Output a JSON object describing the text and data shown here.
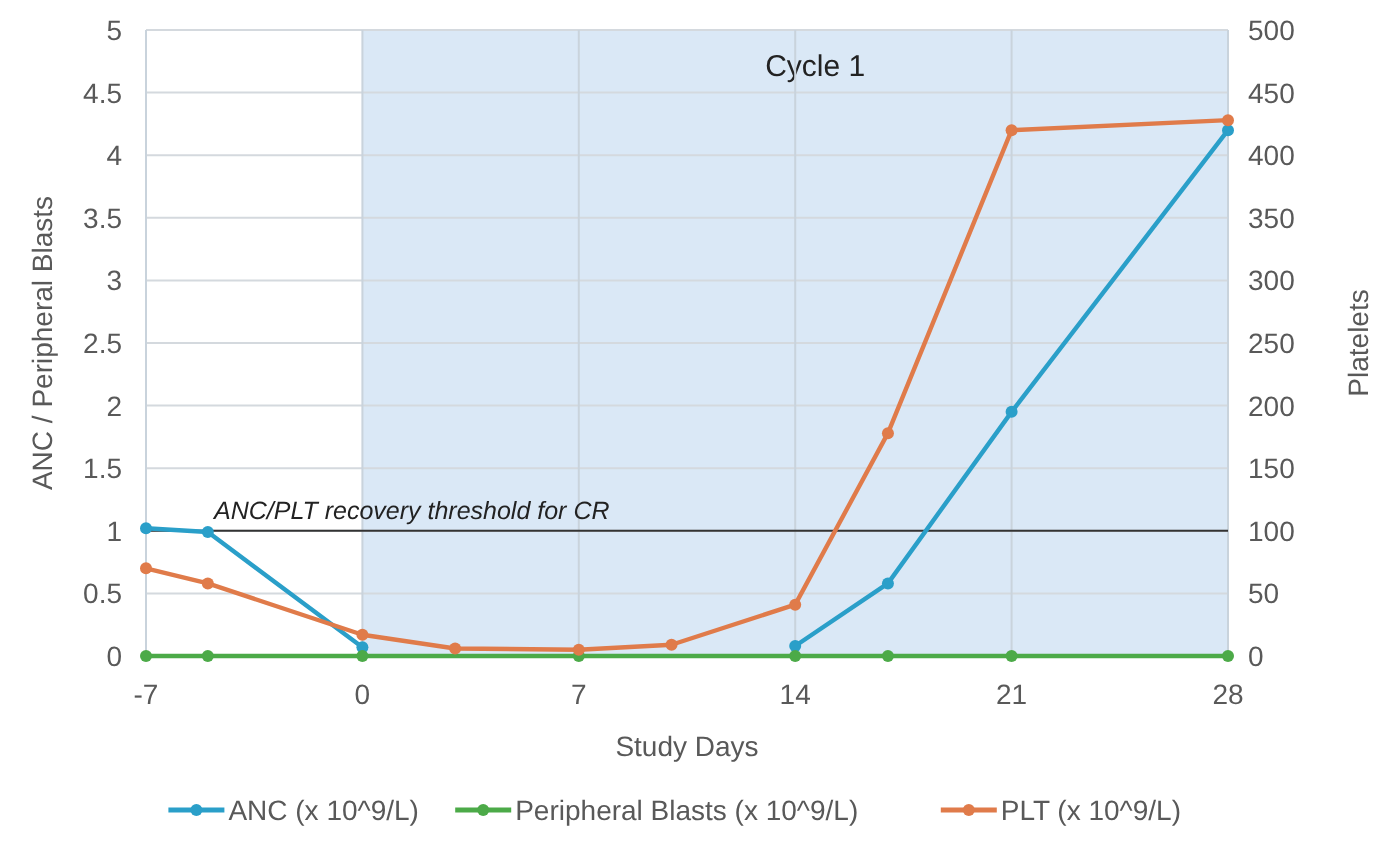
{
  "chart_data": {
    "type": "line",
    "xlabel": "Study Days",
    "ylabel": "ANC / Peripheral Blasts",
    "y2label": "Platelets",
    "xlim": [
      -7,
      28
    ],
    "xticks": [
      -7,
      0,
      7,
      14,
      21,
      28
    ],
    "ylim": [
      0,
      5
    ],
    "yticks": [
      0,
      0.5,
      1,
      1.5,
      2,
      2.5,
      3,
      3.5,
      4,
      4.5,
      5
    ],
    "y2lim": [
      0,
      500
    ],
    "y2ticks": [
      0,
      50,
      100,
      150,
      200,
      250,
      300,
      350,
      400,
      450,
      500
    ],
    "grid": true,
    "legend": "bottom",
    "marker": "circle",
    "line_style": "solid",
    "series": [
      {
        "name": "ANC (x 10^9/L)",
        "color": "#2a9fc9",
        "x": [
          -7,
          -5,
          0,
          7,
          14,
          17,
          21,
          28
        ],
        "values": [
          1.02,
          0.99,
          0.07,
          null,
          0.08,
          0.58,
          1.95,
          4.2
        ]
      },
      {
        "name": "Peripheral Blasts (x 10^9/L)",
        "color": "#4caa48",
        "x": [
          -7,
          -5,
          0,
          7,
          14,
          17,
          21,
          28
        ],
        "values": [
          0,
          0,
          0,
          0,
          0,
          0,
          0,
          0
        ]
      },
      {
        "name": "PLT (x 10^9/L)",
        "color": "#e07b4a",
        "axis": "y2",
        "x": [
          -7,
          -5,
          0,
          3,
          7,
          10,
          14,
          17,
          21,
          28
        ],
        "values": [
          70,
          58,
          17,
          6,
          5,
          9,
          41,
          178,
          420,
          428
        ]
      }
    ],
    "ref_lines": [
      {
        "axis": "y",
        "value": 1,
        "label": "ANC/PLT recovery threshold for CR",
        "color": "#333333"
      }
    ],
    "bands": [
      {
        "axis": "x",
        "from": 0,
        "to": 28,
        "label": "Cycle 1",
        "color": "#dae8f6"
      }
    ]
  }
}
